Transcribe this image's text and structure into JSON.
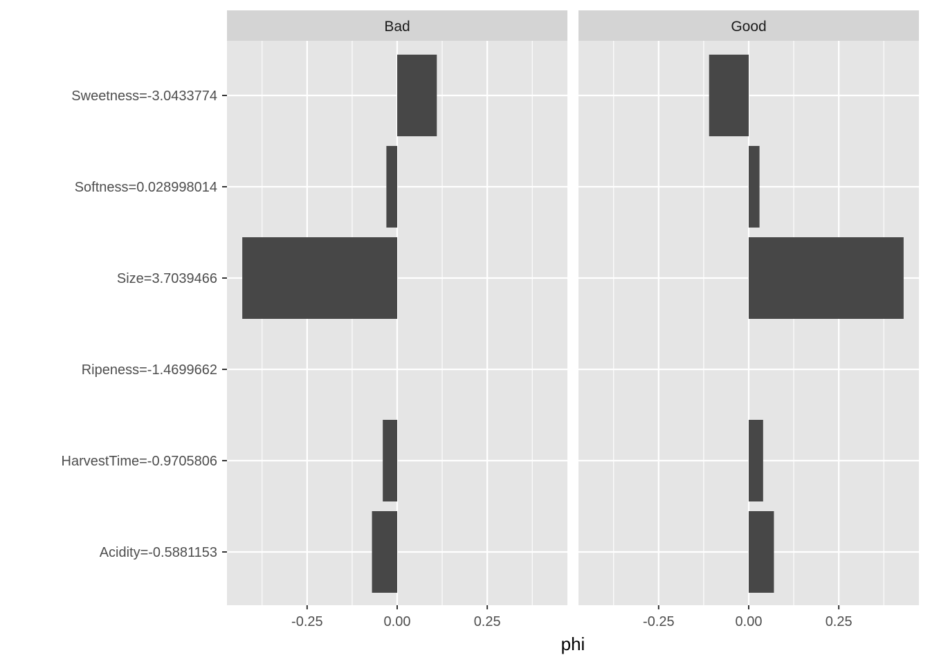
{
  "chart_data": {
    "type": "bar",
    "orientation": "horizontal",
    "facets": [
      "Bad",
      "Good"
    ],
    "categories": [
      "Sweetness=-3.0433774",
      "Softness=0.028998014",
      "Size=3.7039466",
      "Ripeness=-1.4699662",
      "HarvestTime=-0.9705806",
      "Acidity=-0.5881153"
    ],
    "series": [
      {
        "facet": "Bad",
        "values": [
          0.11,
          -0.03,
          -0.43,
          0.0,
          -0.04,
          -0.07
        ]
      },
      {
        "facet": "Good",
        "values": [
          -0.11,
          0.03,
          0.43,
          0.0,
          0.04,
          0.07
        ]
      }
    ],
    "x_ticks": [
      -0.25,
      0.0,
      0.25
    ],
    "x_tick_labels": [
      "-0.25",
      "0.00",
      "0.25"
    ],
    "xlim": [
      -0.4725,
      0.4725
    ],
    "xlabel": "phi",
    "ylabel": "",
    "grid": true,
    "colors": {
      "panel_bg": "#e5e5e5",
      "grid": "#ffffff",
      "bar": "#474747",
      "strip_bg": "#d4d4d4",
      "tick": "#333333"
    }
  }
}
